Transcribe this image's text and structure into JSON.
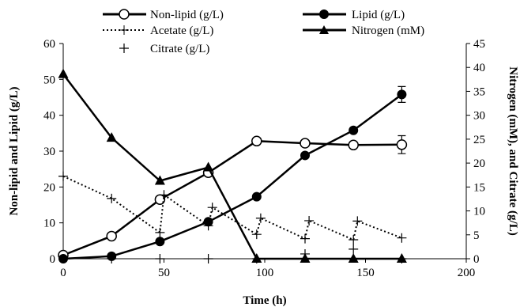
{
  "chart_data": {
    "type": "line",
    "xlabel": "Time (h)",
    "ylabel_left": "Non-lipid and Lipid (g/L)",
    "ylabel_right": "Nitrogen (mM), and Citrate (g/L)",
    "xlim": [
      0,
      200
    ],
    "ylim_left": [
      0,
      60
    ],
    "ylim_right": [
      0,
      45
    ],
    "x_ticks": [
      "0",
      "50",
      "100",
      "150",
      "200"
    ],
    "y_ticks_left": [
      "0",
      "10",
      "20",
      "30",
      "40",
      "50",
      "60"
    ],
    "y_ticks_right": [
      "0",
      "5",
      "10",
      "15",
      "20",
      "25",
      "30",
      "35",
      "40",
      "45"
    ],
    "grid": false,
    "legend_position": "top",
    "series": [
      {
        "name": "Non-lipid (g/L)",
        "axis": "left",
        "style": "solid-open-circle",
        "points": [
          [
            0,
            1
          ],
          [
            24,
            6.3
          ],
          [
            48,
            16.5
          ],
          [
            72,
            24
          ],
          [
            96,
            32.8
          ],
          [
            120,
            32.2
          ],
          [
            144,
            31.7
          ],
          [
            168,
            31.8
          ]
        ],
        "errors": [
          [
            168,
            2.5
          ]
        ]
      },
      {
        "name": "Lipid (g/L)",
        "axis": "left",
        "style": "solid-filled-circle",
        "points": [
          [
            0,
            0
          ],
          [
            24,
            0.7
          ],
          [
            48,
            4.8
          ],
          [
            72,
            10.3
          ],
          [
            96,
            17.3
          ],
          [
            120,
            28.8
          ],
          [
            144,
            35.8
          ],
          [
            168,
            45.8
          ]
        ],
        "errors": [
          [
            168,
            2.2
          ]
        ]
      },
      {
        "name": "Acetate (g/L)",
        "axis": "left",
        "style": "dotted-plus",
        "points": [
          [
            0,
            23
          ],
          [
            24,
            16.8
          ],
          [
            48,
            7.3
          ],
          [
            50,
            17.8
          ],
          [
            72,
            9.2
          ],
          [
            74,
            14.3
          ],
          [
            96,
            6.8
          ],
          [
            98,
            11.3
          ],
          [
            120,
            5.6
          ],
          [
            122,
            10.6
          ],
          [
            144,
            5.3
          ],
          [
            146,
            10.5
          ],
          [
            168,
            5.8
          ]
        ]
      },
      {
        "name": "Nitrogen (mM)",
        "axis": "right",
        "style": "solid-filled-triangle",
        "points": [
          [
            0,
            38.6
          ],
          [
            24,
            25.3
          ],
          [
            48,
            16.3
          ],
          [
            72,
            19.1
          ],
          [
            96,
            0
          ],
          [
            120,
            0
          ],
          [
            144,
            0
          ],
          [
            168,
            0
          ]
        ]
      },
      {
        "name": "Citrate (g/L)",
        "axis": "right",
        "style": "markers-plus",
        "points": [
          [
            0,
            0
          ],
          [
            24,
            0
          ],
          [
            48,
            0
          ],
          [
            72,
            0
          ],
          [
            96,
            0
          ],
          [
            120,
            1
          ],
          [
            144,
            2
          ],
          [
            168,
            0
          ]
        ]
      }
    ]
  }
}
